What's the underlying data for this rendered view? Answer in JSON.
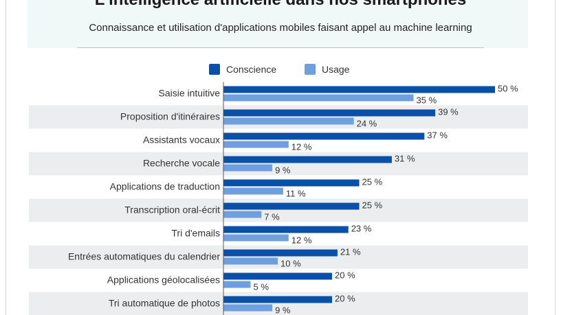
{
  "title": "L'intelligence artificielle dans nos smartphones",
  "subtitle": "Connaissance et utilisation d'applications mobiles faisant appel au machine learning",
  "colors": {
    "conscience": "#0a4fa8",
    "usage": "#6f9fdf",
    "row_alt": "#ebedee"
  },
  "chart_data": {
    "type": "bar",
    "orientation": "horizontal",
    "unit": "%",
    "categories": [
      "Saisie intuitive",
      "Proposition d'itinéraires",
      "Assistants vocaux",
      "Recherche vocale",
      "Applications de traduction",
      "Transcription oral-écrit",
      "Tri d'emails",
      "Entrées automatiques du calendrier",
      "Applications géolocalisées",
      "Tri automatique de photos"
    ],
    "series": [
      {
        "name": "Conscience",
        "values": [
          50,
          39,
          37,
          31,
          25,
          25,
          23,
          21,
          20,
          20
        ]
      },
      {
        "name": "Usage",
        "values": [
          35,
          24,
          12,
          9,
          11,
          7,
          12,
          10,
          5,
          9
        ]
      }
    ],
    "xlim": [
      0,
      50
    ],
    "legend_position": "top",
    "value_labels": true,
    "grid": false
  }
}
